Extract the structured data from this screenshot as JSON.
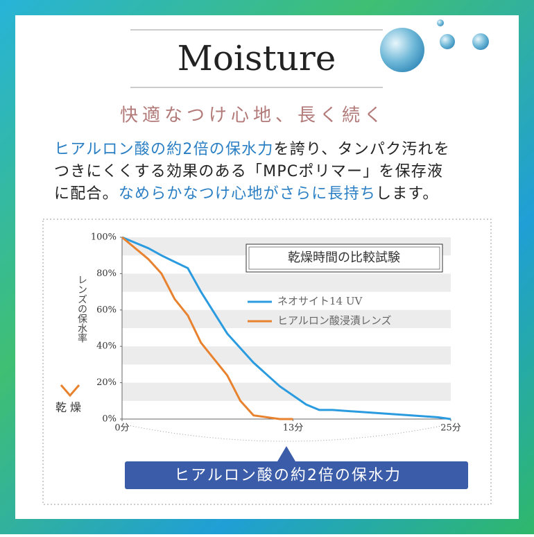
{
  "header": {
    "title": "Moisture",
    "subtitle": "快適なつけ心地、長く続く"
  },
  "body": {
    "lines": [
      [
        {
          "text": "ヒアルロン酸の約2倍の保水力",
          "emphasis": true
        },
        {
          "text": "を誇り、タンパク汚れを",
          "emphasis": false
        }
      ],
      [
        {
          "text": "つきにくくする効果のある「MPCポリマー」を保存液",
          "emphasis": false
        }
      ],
      [
        {
          "text": "に配合。",
          "emphasis": false
        },
        {
          "text": "なめらかなつけ心地がさらに長持ち",
          "emphasis": true
        },
        {
          "text": "します。",
          "emphasis": false
        }
      ]
    ]
  },
  "chart_data": {
    "type": "line",
    "title": "乾燥時間の比較試験",
    "y_label": "レンズの保水率",
    "y_bottom_label": "乾燥",
    "annotation": "ヒアルロン酸の約2倍の保水力",
    "xlim": [
      0,
      25
    ],
    "ylim": [
      0,
      100
    ],
    "xticks": [
      {
        "value": 0,
        "label": "0分"
      },
      {
        "value": 13,
        "label": "13分"
      },
      {
        "value": 25,
        "label": "25分"
      }
    ],
    "yticks": [
      {
        "value": 0,
        "label": "0%"
      },
      {
        "value": 20,
        "label": "20%"
      },
      {
        "value": 40,
        "label": "40%"
      },
      {
        "value": 60,
        "label": "60%"
      },
      {
        "value": 80,
        "label": "80%"
      },
      {
        "value": 100,
        "label": "100%"
      }
    ],
    "series": [
      {
        "name": "ネオサイト14 UV",
        "color": "#2b9be0",
        "x": [
          0,
          2,
          3,
          5,
          6,
          8,
          10,
          12,
          14,
          15,
          16,
          18,
          20,
          22,
          24,
          25
        ],
        "values": [
          100,
          94,
          90,
          83,
          70,
          47,
          31,
          18,
          8,
          5,
          5,
          4,
          3,
          2,
          1,
          0
        ]
      },
      {
        "name": "ヒアルロン酸浸漬レンズ",
        "color": "#e8822e",
        "x": [
          0,
          2,
          3,
          4,
          5,
          6,
          8,
          9,
          10,
          12,
          13
        ],
        "values": [
          100,
          88,
          80,
          66,
          57,
          42,
          24,
          10,
          2,
          0,
          0
        ]
      }
    ]
  }
}
